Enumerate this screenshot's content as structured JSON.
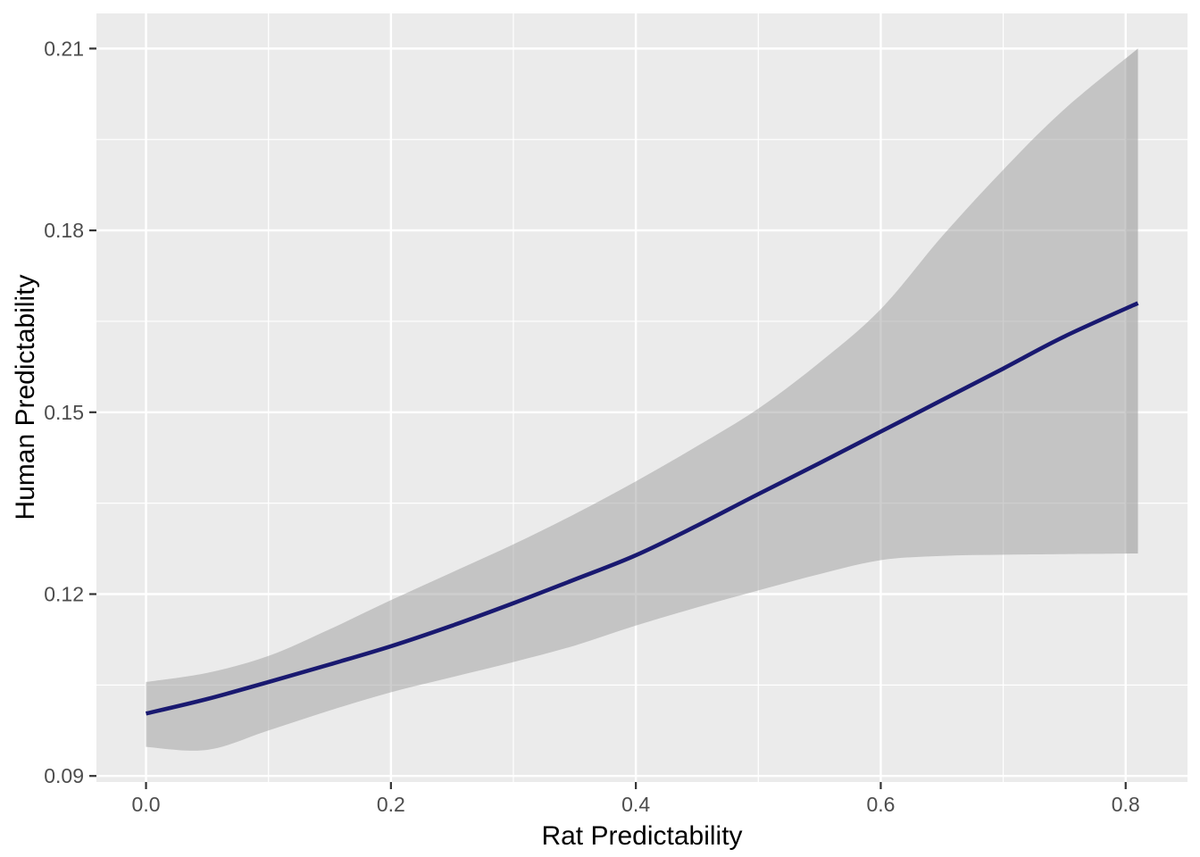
{
  "chart_data": {
    "type": "line",
    "title": "",
    "xlabel": "Rat Predictability",
    "ylabel": "Human Predictability",
    "xlim": [
      -0.0405,
      0.8505
    ],
    "ylim": [
      0.089,
      0.2158
    ],
    "x_ticks": [
      0.0,
      0.2,
      0.4,
      0.6,
      0.8
    ],
    "x_tick_labels": [
      "0.0",
      "0.2",
      "0.4",
      "0.6",
      "0.8"
    ],
    "y_ticks": [
      0.09,
      0.12,
      0.15,
      0.18,
      0.21
    ],
    "y_tick_labels": [
      "0.09",
      "0.12",
      "0.15",
      "0.18",
      "0.21"
    ],
    "x_minor_ticks": [
      0.1,
      0.3,
      0.5,
      0.7
    ],
    "y_minor_ticks": [
      0.105,
      0.135,
      0.165,
      0.195
    ],
    "grid": true,
    "legend": "none",
    "style": {
      "panel_bg": "#EBEBEB",
      "figure_bg": "#FFFFFF",
      "grid_color": "#FFFFFF",
      "grid_major_width": 2.4,
      "grid_minor_width": 1.2,
      "tick_color": "#333333",
      "tick_label_color": "#4D4D4D",
      "axis_title_color": "#000000"
    },
    "series": [
      {
        "name": "smoothed-fit-with-confidence-band",
        "line_color": "#191970",
        "line_width": 4.6,
        "ribbon_color": "#999999",
        "ribbon_opacity": 0.48,
        "ribbon_double_from": 0.8,
        "ribbon_double_extra_opacity": 0.22,
        "x": [
          0.0,
          0.05,
          0.1,
          0.15,
          0.2,
          0.25,
          0.3,
          0.35,
          0.4,
          0.45,
          0.5,
          0.55,
          0.6,
          0.65,
          0.7,
          0.75,
          0.81
        ],
        "fit": [
          0.1003,
          0.1027,
          0.1055,
          0.1084,
          0.1114,
          0.1148,
          0.1185,
          0.1224,
          0.1264,
          0.1313,
          0.1365,
          0.1416,
          0.1468,
          0.152,
          0.1572,
          0.1625,
          0.168
        ],
        "lower": [
          0.0948,
          0.0943,
          0.0975,
          0.1008,
          0.1038,
          0.1063,
          0.1088,
          0.1115,
          0.1148,
          0.1178,
          0.1206,
          0.1233,
          0.1256,
          0.1263,
          0.1265,
          0.1266,
          0.1267
        ],
        "upper": [
          0.1055,
          0.107,
          0.1098,
          0.1142,
          0.119,
          0.1236,
          0.1282,
          0.1332,
          0.1386,
          0.1444,
          0.1506,
          0.1582,
          0.167,
          0.179,
          0.19,
          0.2,
          0.21
        ]
      }
    ]
  }
}
